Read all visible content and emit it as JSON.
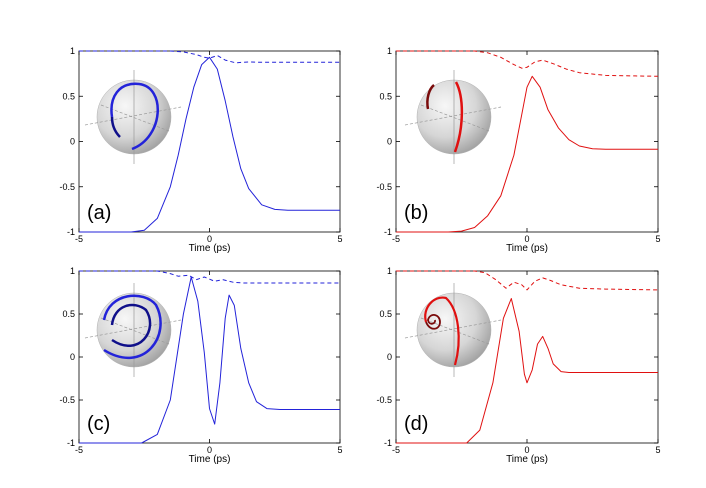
{
  "figure": {
    "colors": {
      "blue": "#2323d9",
      "red": "#e01010",
      "axis": "#000000",
      "sphere_light": "#f5f5f5",
      "sphere_dark": "#9a9a9a"
    }
  },
  "chart_data": [
    {
      "type": "line",
      "panel_label": "(a)",
      "xlabel": "Time (ps)",
      "ylabel": "",
      "xlim": [
        -5,
        5
      ],
      "ylim": [
        -1,
        1
      ],
      "xticks": [
        "-5",
        "0",
        "5"
      ],
      "yticks": [
        "1",
        "0.5",
        "0",
        "-0.5",
        "-1"
      ],
      "color": "blue",
      "series": [
        {
          "name": "solid",
          "style": "solid",
          "x": [
            -5,
            -3,
            -2.5,
            -2,
            -1.5,
            -1.2,
            -0.9,
            -0.6,
            -0.3,
            0,
            0.3,
            0.6,
            0.9,
            1.2,
            1.5,
            2,
            2.5,
            3,
            5
          ],
          "y": [
            -1,
            -1,
            -0.98,
            -0.85,
            -0.5,
            -0.15,
            0.25,
            0.6,
            0.85,
            0.93,
            0.8,
            0.45,
            0.05,
            -0.3,
            -0.52,
            -0.7,
            -0.75,
            -0.76,
            -0.76
          ]
        },
        {
          "name": "dashed",
          "style": "dashed",
          "x": [
            -5,
            -1.5,
            -1,
            -0.5,
            -0.2,
            0,
            0.3,
            0.6,
            1,
            1.5,
            2,
            5
          ],
          "y": [
            1,
            1,
            0.99,
            0.96,
            0.93,
            0.92,
            0.95,
            0.9,
            0.87,
            0.88,
            0.875,
            0.875
          ]
        }
      ]
    },
    {
      "type": "line",
      "panel_label": "(b)",
      "xlabel": "Time (ps)",
      "ylabel": "",
      "xlim": [
        -5,
        5
      ],
      "ylim": [
        -1,
        1
      ],
      "xticks": [
        "-5",
        "0",
        "5"
      ],
      "yticks": [
        "1",
        "0.5",
        "0",
        "-0.5",
        "-1"
      ],
      "color": "red",
      "series": [
        {
          "name": "solid",
          "style": "solid",
          "x": [
            -5,
            -3,
            -2.5,
            -2,
            -1.5,
            -1,
            -0.5,
            -0.2,
            0,
            0.2,
            0.5,
            0.8,
            1.2,
            1.6,
            2,
            2.5,
            3,
            5
          ],
          "y": [
            -1,
            -1,
            -0.99,
            -0.95,
            -0.82,
            -0.6,
            -0.15,
            0.3,
            0.6,
            0.72,
            0.6,
            0.35,
            0.15,
            0.02,
            -0.05,
            -0.08,
            -0.085,
            -0.085
          ]
        },
        {
          "name": "dashed",
          "style": "dashed",
          "x": [
            -5,
            -2,
            -1.5,
            -1,
            -0.5,
            -0.2,
            0,
            0.3,
            0.6,
            1,
            1.5,
            2,
            3,
            5
          ],
          "y": [
            1,
            1,
            0.98,
            0.93,
            0.85,
            0.81,
            0.82,
            0.88,
            0.9,
            0.86,
            0.8,
            0.76,
            0.73,
            0.72
          ]
        }
      ]
    },
    {
      "type": "line",
      "panel_label": "(c)",
      "xlabel": "Time (ps)",
      "ylabel": "",
      "xlim": [
        -5,
        5
      ],
      "ylim": [
        -1,
        1
      ],
      "xticks": [
        "-5",
        "0",
        "5"
      ],
      "yticks": [
        "1",
        "0.5",
        "0",
        "-0.5",
        "-1"
      ],
      "color": "blue",
      "series": [
        {
          "name": "solid",
          "style": "solid",
          "x": [
            -5,
            -2.6,
            -2,
            -1.5,
            -1,
            -0.7,
            -0.45,
            -0.2,
            0,
            0.2,
            0.4,
            0.6,
            0.75,
            0.95,
            1.2,
            1.5,
            1.8,
            2.2,
            2.7,
            5
          ],
          "y": [
            -1,
            -1,
            -0.9,
            -0.5,
            0.5,
            0.93,
            0.65,
            0.05,
            -0.6,
            -0.78,
            -0.3,
            0.45,
            0.72,
            0.6,
            0.1,
            -0.3,
            -0.52,
            -0.6,
            -0.61,
            -0.61
          ]
        },
        {
          "name": "dashed",
          "style": "dashed",
          "x": [
            -5,
            -2,
            -1.5,
            -1.2,
            -0.8,
            -0.5,
            -0.2,
            0.2,
            0.5,
            0.9,
            1.3,
            2,
            5
          ],
          "y": [
            1,
            1,
            0.97,
            0.94,
            0.95,
            0.9,
            0.93,
            0.88,
            0.9,
            0.87,
            0.86,
            0.86,
            0.86
          ]
        }
      ]
    },
    {
      "type": "line",
      "panel_label": "(d)",
      "xlabel": "Time (ps)",
      "ylabel": "",
      "xlim": [
        -5,
        5
      ],
      "ylim": [
        -1,
        1
      ],
      "xticks": [
        "-5",
        "0",
        "5"
      ],
      "yticks": [
        "1",
        "0.5",
        "0",
        "-0.5",
        "-1"
      ],
      "color": "red",
      "series": [
        {
          "name": "solid",
          "style": "solid",
          "x": [
            -5,
            -2.3,
            -1.8,
            -1.3,
            -0.9,
            -0.6,
            -0.3,
            -0.1,
            0,
            0.2,
            0.4,
            0.6,
            0.8,
            1,
            1.3,
            1.6,
            2,
            5
          ],
          "y": [
            -1,
            -1,
            -0.85,
            -0.3,
            0.45,
            0.68,
            0.3,
            -0.2,
            -0.3,
            -0.15,
            0.15,
            0.24,
            0.1,
            -0.08,
            -0.17,
            -0.18,
            -0.18,
            -0.18
          ]
        },
        {
          "name": "dashed",
          "style": "dashed",
          "x": [
            -5,
            -2,
            -1.6,
            -1.2,
            -0.8,
            -0.5,
            -0.2,
            0,
            0.3,
            0.6,
            0.9,
            1.3,
            2,
            3,
            5
          ],
          "y": [
            1,
            1,
            0.98,
            0.9,
            0.8,
            0.87,
            0.84,
            0.78,
            0.88,
            0.92,
            0.89,
            0.84,
            0.8,
            0.79,
            0.78
          ]
        }
      ]
    }
  ]
}
